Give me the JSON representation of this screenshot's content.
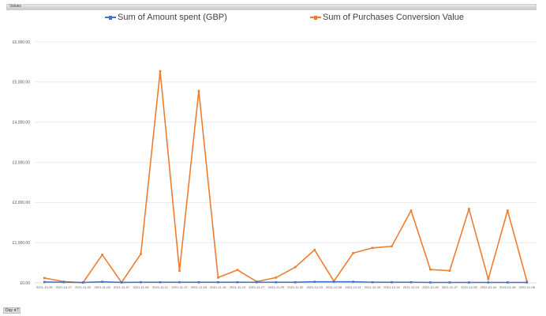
{
  "field_bar": {
    "label": "Values"
  },
  "legend": [
    {
      "label": "Sum of Amount spent (GBP)",
      "color": "#4472C4"
    },
    {
      "label": "Sum of Purchases Conversion Value",
      "color": "#ED7D31"
    }
  ],
  "filter_button": {
    "label": "Day",
    "icon": "filter-dropdown-icon"
  },
  "chart_data": {
    "type": "line",
    "title": "",
    "xlabel": "",
    "ylabel": "",
    "ylim": [
      0,
      6000
    ],
    "yticks": [
      "£0.00",
      "£1,000.00",
      "£2,000.00",
      "£3,000.00",
      "£4,000.00",
      "£5,000.00",
      "£6,000.00"
    ],
    "grid": true,
    "legend_position": "top",
    "x": [
      "2021-10-25",
      "2021-10-27",
      "2021-11-02",
      "2021-11-05",
      "2021-11-07",
      "2021-11-08",
      "2021-11-11",
      "2021-11-12",
      "2021-11-15",
      "2021-11-16",
      "2021-11-24",
      "2021-11-27",
      "2021-11-29",
      "2021-11-30",
      "2021-12-03",
      "2021-12-06",
      "2021-12-11",
      "2021-12-15",
      "2021-12-16",
      "2021-12-19",
      "2021-12-26",
      "2021-12-27",
      "2021-12-28",
      "2022-01-04",
      "2022-01-05",
      "2022-01-08"
    ],
    "series": [
      {
        "name": "Sum of Amount spent (GBP)",
        "color": "#4472C4",
        "values": [
          20,
          15,
          10,
          25,
          12,
          15,
          15,
          15,
          15,
          15,
          15,
          15,
          15,
          15,
          25,
          25,
          25,
          15,
          15,
          15,
          10,
          10,
          10,
          10,
          10,
          10
        ]
      },
      {
        "name": "Sum of Purchases Conversion Value",
        "color": "#ED7D31",
        "values": [
          120,
          30,
          5,
          700,
          10,
          720,
          5270,
          300,
          4780,
          130,
          320,
          30,
          130,
          390,
          820,
          40,
          740,
          870,
          910,
          1800,
          330,
          300,
          1840,
          90,
          1800,
          40
        ]
      }
    ]
  }
}
